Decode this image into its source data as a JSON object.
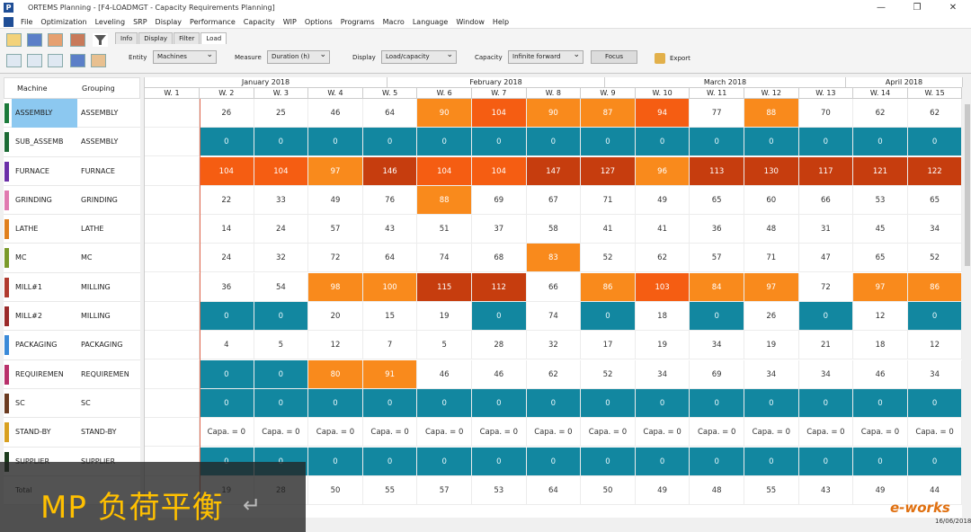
{
  "window": {
    "title": "ORTEMS  Planning - [F4-LOADMGT - Capacity Requirements Planning]",
    "app_icon": "P"
  },
  "menu": [
    "File",
    "Optimization",
    "Leveling",
    "SRP",
    "Display",
    "Performance",
    "Capacity",
    "WIP",
    "Options",
    "Programs",
    "Macro",
    "Language",
    "Window",
    "Help"
  ],
  "tabs": [
    "Info",
    "Display",
    "Filter",
    "Load"
  ],
  "active_tab": "Load",
  "controls": {
    "entity_label": "Entity",
    "entity_value": "Machines",
    "measure_label": "Measure",
    "measure_value": "Duration (h)",
    "display_label": "Display",
    "display_value": "Load/capacity",
    "capacity_label": "Capacity",
    "capacity_value": "Infinite forward",
    "focus_label": "Focus",
    "export_label": "Export"
  },
  "headers": {
    "machine": "Machine",
    "grouping": "Grouping"
  },
  "months": [
    "January 2018",
    "February 2018",
    "March 2018",
    "April 2018"
  ],
  "weeks": [
    "W. 1",
    "W. 2",
    "W. 3",
    "W. 4",
    "W. 5",
    "W. 6",
    "W. 7",
    "W. 8",
    "W. 9",
    "W. 10",
    "W. 11",
    "W. 12",
    "W. 13",
    "W. 14",
    "W. 15"
  ],
  "colors": {
    "blue": "#1287a0",
    "orange": "#f98a1c",
    "redor": "#f55d12",
    "darkred": "#c63d0e"
  },
  "rows": [
    {
      "machine": "ASSEMBLY",
      "grouping": "ASSEMBLY",
      "color": "#1b7a3a",
      "selected": true,
      "cells": [
        [
          "26",
          "white"
        ],
        [
          "25",
          "white"
        ],
        [
          "46",
          "white"
        ],
        [
          "64",
          "white"
        ],
        [
          "90",
          "orange"
        ],
        [
          "104",
          "redor"
        ],
        [
          "90",
          "orange"
        ],
        [
          "87",
          "orange"
        ],
        [
          "94",
          "redor"
        ],
        [
          "77",
          "white"
        ],
        [
          "88",
          "orange"
        ],
        [
          "70",
          "white"
        ],
        [
          "62",
          "white"
        ],
        [
          "62",
          "white"
        ]
      ]
    },
    {
      "machine": "SUB_ASSEMB",
      "grouping": "ASSEMBLY",
      "color": "#1b6a34",
      "cells": [
        [
          "0",
          "blue"
        ],
        [
          "0",
          "blue"
        ],
        [
          "0",
          "blue"
        ],
        [
          "0",
          "blue"
        ],
        [
          "0",
          "blue"
        ],
        [
          "0",
          "blue"
        ],
        [
          "0",
          "blue"
        ],
        [
          "0",
          "blue"
        ],
        [
          "0",
          "blue"
        ],
        [
          "0",
          "blue"
        ],
        [
          "0",
          "blue"
        ],
        [
          "0",
          "blue"
        ],
        [
          "0",
          "blue"
        ],
        [
          "0",
          "blue"
        ]
      ]
    },
    {
      "machine": "FURNACE",
      "grouping": "FURNACE",
      "color": "#6b2fa8",
      "cells": [
        [
          "104",
          "redor"
        ],
        [
          "104",
          "redor"
        ],
        [
          "97",
          "orange"
        ],
        [
          "146",
          "darkred"
        ],
        [
          "104",
          "redor"
        ],
        [
          "104",
          "redor"
        ],
        [
          "147",
          "darkred"
        ],
        [
          "127",
          "darkred"
        ],
        [
          "96",
          "orange"
        ],
        [
          "113",
          "darkred"
        ],
        [
          "130",
          "darkred"
        ],
        [
          "117",
          "darkred"
        ],
        [
          "121",
          "darkred"
        ],
        [
          "122",
          "darkred"
        ]
      ]
    },
    {
      "machine": "GRINDING",
      "grouping": "GRINDING",
      "color": "#e07ab0",
      "cells": [
        [
          "22",
          "white"
        ],
        [
          "33",
          "white"
        ],
        [
          "49",
          "white"
        ],
        [
          "76",
          "white"
        ],
        [
          "88",
          "orange"
        ],
        [
          "69",
          "white"
        ],
        [
          "67",
          "white"
        ],
        [
          "71",
          "white"
        ],
        [
          "49",
          "white"
        ],
        [
          "65",
          "white"
        ],
        [
          "60",
          "white"
        ],
        [
          "66",
          "white"
        ],
        [
          "53",
          "white"
        ],
        [
          "65",
          "white"
        ]
      ]
    },
    {
      "machine": "LATHE",
      "grouping": "LATHE",
      "color": "#e0801e",
      "cells": [
        [
          "14",
          "white"
        ],
        [
          "24",
          "white"
        ],
        [
          "57",
          "white"
        ],
        [
          "43",
          "white"
        ],
        [
          "51",
          "white"
        ],
        [
          "37",
          "white"
        ],
        [
          "58",
          "white"
        ],
        [
          "41",
          "white"
        ],
        [
          "41",
          "white"
        ],
        [
          "36",
          "white"
        ],
        [
          "48",
          "white"
        ],
        [
          "31",
          "white"
        ],
        [
          "45",
          "white"
        ],
        [
          "34",
          "white"
        ]
      ]
    },
    {
      "machine": "MC",
      "grouping": "MC",
      "color": "#7a9a2a",
      "cells": [
        [
          "24",
          "white"
        ],
        [
          "32",
          "white"
        ],
        [
          "72",
          "white"
        ],
        [
          "64",
          "white"
        ],
        [
          "74",
          "white"
        ],
        [
          "68",
          "white"
        ],
        [
          "83",
          "orange"
        ],
        [
          "52",
          "white"
        ],
        [
          "62",
          "white"
        ],
        [
          "57",
          "white"
        ],
        [
          "71",
          "white"
        ],
        [
          "47",
          "white"
        ],
        [
          "65",
          "white"
        ],
        [
          "52",
          "white"
        ]
      ]
    },
    {
      "machine": "MILL#1",
      "grouping": "MILLING",
      "color": "#b03a2e",
      "cells": [
        [
          "36",
          "white"
        ],
        [
          "54",
          "white"
        ],
        [
          "98",
          "orange"
        ],
        [
          "100",
          "orange"
        ],
        [
          "115",
          "darkred"
        ],
        [
          "112",
          "darkred"
        ],
        [
          "66",
          "white"
        ],
        [
          "86",
          "orange"
        ],
        [
          "103",
          "redor"
        ],
        [
          "84",
          "orange"
        ],
        [
          "97",
          "orange"
        ],
        [
          "72",
          "white"
        ],
        [
          "97",
          "orange"
        ],
        [
          "86",
          "orange"
        ]
      ]
    },
    {
      "machine": "MILL#2",
      "grouping": "MILLING",
      "color": "#9a2a2a",
      "cells": [
        [
          "0",
          "blue"
        ],
        [
          "0",
          "blue"
        ],
        [
          "20",
          "white"
        ],
        [
          "15",
          "white"
        ],
        [
          "19",
          "white"
        ],
        [
          "0",
          "blue"
        ],
        [
          "74",
          "white"
        ],
        [
          "0",
          "blue"
        ],
        [
          "18",
          "white"
        ],
        [
          "0",
          "blue"
        ],
        [
          "26",
          "white"
        ],
        [
          "0",
          "blue"
        ],
        [
          "12",
          "white"
        ],
        [
          "0",
          "blue"
        ]
      ]
    },
    {
      "machine": "PACKAGING",
      "grouping": "PACKAGING",
      "color": "#3a8ad8",
      "cells": [
        [
          "4",
          "white"
        ],
        [
          "5",
          "white"
        ],
        [
          "12",
          "white"
        ],
        [
          "7",
          "white"
        ],
        [
          "5",
          "white"
        ],
        [
          "28",
          "white"
        ],
        [
          "32",
          "white"
        ],
        [
          "17",
          "white"
        ],
        [
          "19",
          "white"
        ],
        [
          "34",
          "white"
        ],
        [
          "19",
          "white"
        ],
        [
          "21",
          "white"
        ],
        [
          "18",
          "white"
        ],
        [
          "12",
          "white"
        ]
      ]
    },
    {
      "machine": "REQUIREMEN",
      "grouping": "REQUIREMEN",
      "color": "#b8306a",
      "cells": [
        [
          "0",
          "blue"
        ],
        [
          "0",
          "blue"
        ],
        [
          "80",
          "orange"
        ],
        [
          "91",
          "orange"
        ],
        [
          "46",
          "white"
        ],
        [
          "46",
          "white"
        ],
        [
          "62",
          "white"
        ],
        [
          "52",
          "white"
        ],
        [
          "34",
          "white"
        ],
        [
          "69",
          "white"
        ],
        [
          "34",
          "white"
        ],
        [
          "34",
          "white"
        ],
        [
          "46",
          "white"
        ],
        [
          "34",
          "white"
        ]
      ]
    },
    {
      "machine": "SC",
      "grouping": "SC",
      "color": "#6a3a20",
      "cells": [
        [
          "0",
          "blue"
        ],
        [
          "0",
          "blue"
        ],
        [
          "0",
          "blue"
        ],
        [
          "0",
          "blue"
        ],
        [
          "0",
          "blue"
        ],
        [
          "0",
          "blue"
        ],
        [
          "0",
          "blue"
        ],
        [
          "0",
          "blue"
        ],
        [
          "0",
          "blue"
        ],
        [
          "0",
          "blue"
        ],
        [
          "0",
          "blue"
        ],
        [
          "0",
          "blue"
        ],
        [
          "0",
          "blue"
        ],
        [
          "0",
          "blue"
        ]
      ]
    },
    {
      "machine": "STAND-BY",
      "grouping": "STAND-BY",
      "color": "#d8a020",
      "cells": [
        [
          "Capa. = 0",
          "white"
        ],
        [
          "Capa. = 0",
          "white"
        ],
        [
          "Capa. = 0",
          "white"
        ],
        [
          "Capa. = 0",
          "white"
        ],
        [
          "Capa. = 0",
          "white"
        ],
        [
          "Capa. = 0",
          "white"
        ],
        [
          "Capa. = 0",
          "white"
        ],
        [
          "Capa. = 0",
          "white"
        ],
        [
          "Capa. = 0",
          "white"
        ],
        [
          "Capa. = 0",
          "white"
        ],
        [
          "Capa. = 0",
          "white"
        ],
        [
          "Capa. = 0",
          "white"
        ],
        [
          "Capa. = 0",
          "white"
        ],
        [
          "Capa. = 0",
          "white"
        ]
      ]
    },
    {
      "machine": "SUPPLIER",
      "grouping": "SUPPLIER",
      "color": "#1a3a1a",
      "cells": [
        [
          "0",
          "blue"
        ],
        [
          "0",
          "blue"
        ],
        [
          "0",
          "blue"
        ],
        [
          "0",
          "blue"
        ],
        [
          "0",
          "blue"
        ],
        [
          "0",
          "blue"
        ],
        [
          "0",
          "blue"
        ],
        [
          "0",
          "blue"
        ],
        [
          "0",
          "blue"
        ],
        [
          "0",
          "blue"
        ],
        [
          "0",
          "blue"
        ],
        [
          "0",
          "blue"
        ],
        [
          "0",
          "blue"
        ],
        [
          "0",
          "blue"
        ]
      ]
    },
    {
      "machine": "Total",
      "grouping": "",
      "color": "#ffffff",
      "cells": [
        [
          "19",
          "white"
        ],
        [
          "28",
          "white"
        ],
        [
          "50",
          "white"
        ],
        [
          "55",
          "white"
        ],
        [
          "57",
          "white"
        ],
        [
          "53",
          "white"
        ],
        [
          "64",
          "white"
        ],
        [
          "50",
          "white"
        ],
        [
          "49",
          "white"
        ],
        [
          "48",
          "white"
        ],
        [
          "55",
          "white"
        ],
        [
          "43",
          "white"
        ],
        [
          "49",
          "white"
        ],
        [
          "44",
          "white"
        ]
      ]
    }
  ],
  "overlay": {
    "caption": "MP 负荷平衡",
    "return_glyph": "↵"
  },
  "watermark": "e-works",
  "datestamp": "16/06/2018"
}
